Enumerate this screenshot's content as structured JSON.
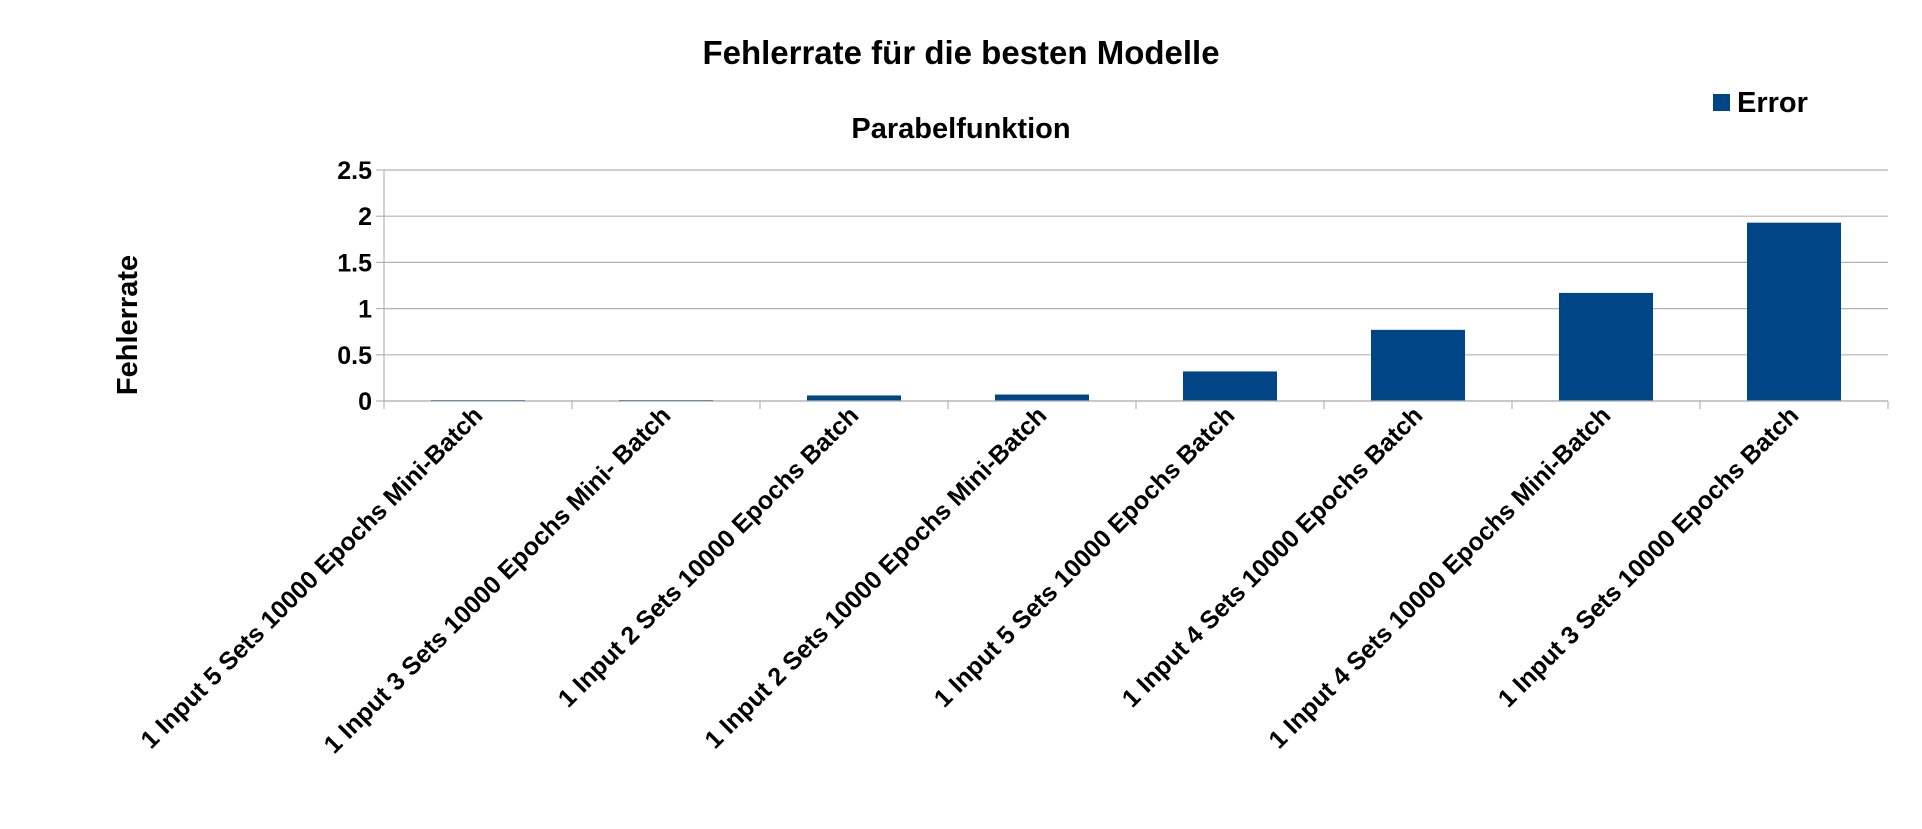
{
  "chart_data": {
    "type": "bar",
    "title": "Fehlerrate für die besten Modelle",
    "subtitle": "Parabelfunktion",
    "xlabel": "",
    "ylabel": "Fehlerrate",
    "ylim": [
      0,
      2.5
    ],
    "yticks": [
      "0",
      "0.5",
      "1",
      "1.5",
      "2",
      "2.5"
    ],
    "ytick_values": [
      0,
      0.5,
      1,
      1.5,
      2,
      2.5
    ],
    "grid": true,
    "legend_position": "top-right",
    "categories": [
      "1 Input 5 Sets 10000 Epochs Mini-Batch",
      "1 Input 3 Sets 10000 Epochs Mini- Batch",
      "1 Input 2 Sets 10000 Epochs Batch",
      "1 Input 2 Sets 10000 Epochs Mini-Batch",
      "1 Input 5 Sets 10000 Epochs Batch",
      "1 Input 4 Sets 10000 Epochs Batch",
      "1 Input 4 Sets 10000 Epochs Mini-Batch",
      "1 Input 3 Sets 10000 Epochs Batch"
    ],
    "series": [
      {
        "name": "Error",
        "color": "#004586",
        "values": [
          0.005,
          0.01,
          0.06,
          0.07,
          0.32,
          0.77,
          1.17,
          1.93
        ]
      }
    ]
  }
}
